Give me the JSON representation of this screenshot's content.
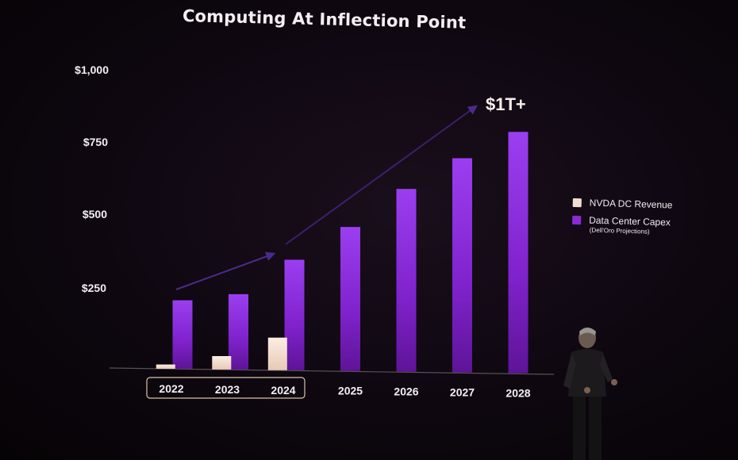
{
  "chart_data": {
    "type": "bar",
    "title": "Computing At Inflection Point",
    "categories": [
      "2022",
      "2023",
      "2024",
      "2025",
      "2026",
      "2027",
      "2028"
    ],
    "highlighted_categories": [
      "2022",
      "2023",
      "2024"
    ],
    "series": [
      {
        "name": "NVDA DC Revenue",
        "color": "#f3ddd0",
        "values": [
          15,
          47,
          115,
          null,
          null,
          null,
          null
        ]
      },
      {
        "name": "Data Center Capex",
        "note": "(Dell'Oro Projections)",
        "color": "#8a2ad6",
        "values": [
          240,
          265,
          390,
          510,
          650,
          765,
          865
        ]
      }
    ],
    "yaxis": {
      "ticks": [
        250,
        500,
        750,
        1000
      ],
      "tick_labels": [
        "$250",
        "$500",
        "$750",
        "$1,000"
      ],
      "ylim": [
        0,
        1000
      ]
    },
    "annotation": "$1T+",
    "xlabel": "",
    "ylabel": ""
  }
}
